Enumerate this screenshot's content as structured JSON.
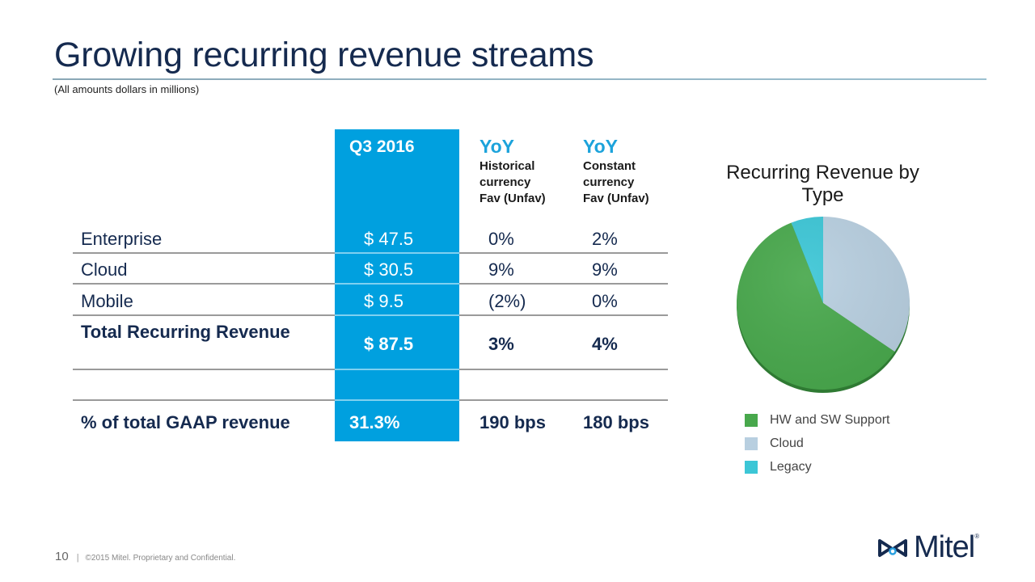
{
  "slide": {
    "title": "Growing recurring revenue streams",
    "subtitle": "(All amounts dollars in millions)",
    "page_number": "10",
    "separator": "|",
    "copyright": "©2015 Mitel. Proprietary and Confidential.",
    "brand": "Mitel",
    "brand_mark": "®"
  },
  "table": {
    "headers": {
      "period": "Q3 2016",
      "col1_title": "YoY",
      "col1_sub": [
        "Historical",
        "currency",
        "Fav (Unfav)"
      ],
      "col2_title": "YoY",
      "col2_sub": [
        "Constant",
        "currency",
        "Fav (Unfav)"
      ]
    },
    "rows": [
      {
        "label": "Enterprise",
        "value": "$ 47.5",
        "yoy_hist": "0%",
        "yoy_const": "2%"
      },
      {
        "label": "Cloud",
        "value": "$ 30.5",
        "yoy_hist": "9%",
        "yoy_const": "9%"
      },
      {
        "label": "Mobile",
        "value": "$ 9.5",
        "yoy_hist": "(2%)",
        "yoy_const": "0%"
      },
      {
        "label": "Total Recurring Revenue",
        "value": "$ 87.5",
        "yoy_hist": "3%",
        "yoy_const": "4%"
      }
    ],
    "gaap": {
      "label": "% of total GAAP revenue",
      "value": "31.3%",
      "yoy_hist": "190 bps",
      "yoy_const": "180 bps"
    },
    "colors": {
      "highlight": "#00a0df",
      "yoy_title": "#1ca3db",
      "text": "#152a4f"
    }
  },
  "chart_data": {
    "type": "pie",
    "title": "Recurring Revenue by Type",
    "slices": [
      {
        "name": "Cloud",
        "value": 34.5,
        "color": "#b8cfe0"
      },
      {
        "name": "HW and SW Support",
        "value": 59.5,
        "color": "#48a84c"
      },
      {
        "name": "Legacy",
        "value": 6.0,
        "color": "#3cc6d6"
      }
    ],
    "start": "12 o'clock",
    "direction": "clockwise",
    "legend": {
      "placement": "bottom",
      "entries": [
        {
          "label": "HW and SW Support",
          "color": "#48a84c"
        },
        {
          "label": "Cloud",
          "color": "#b8cfe0"
        },
        {
          "label": "Legacy",
          "color": "#3cc6d6"
        }
      ]
    }
  }
}
